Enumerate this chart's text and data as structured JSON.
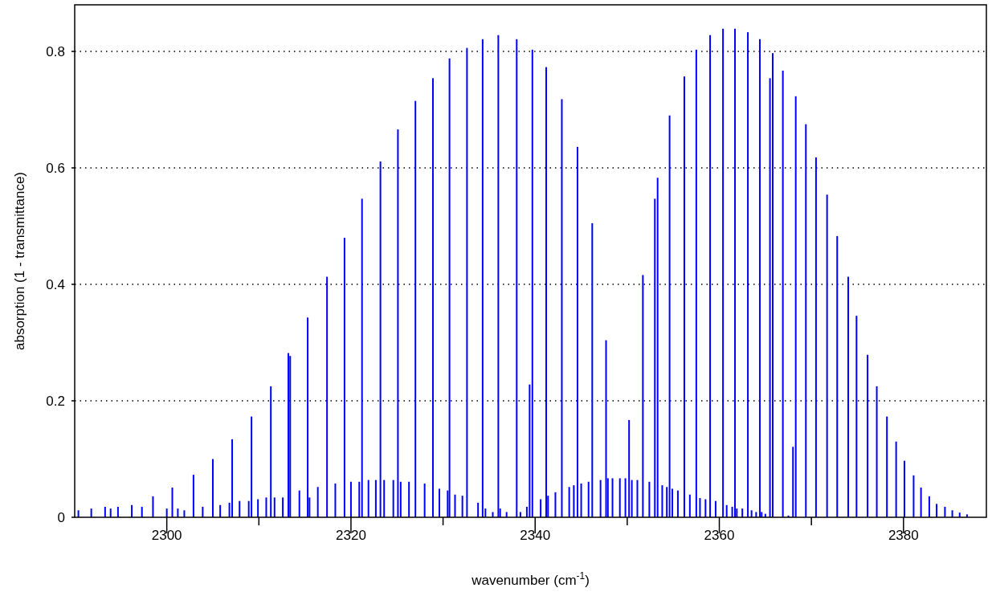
{
  "chart_data": {
    "type": "bar",
    "xlabel": "wavenumber (cm$^{-1}$)",
    "ylabel": "absorption (1 - transmittance)",
    "xlim": [
      2290,
      2389
    ],
    "ylim": [
      0,
      0.88
    ],
    "xticks": [
      2300,
      {
        "value": 2310,
        "label": null
      },
      2320,
      {
        "value": 2330,
        "label": null
      },
      2340,
      {
        "value": 2350,
        "label": null
      },
      2360,
      {
        "value": 2370,
        "label": null
      },
      2380
    ],
    "yticks": [
      0,
      0.2,
      0.4,
      0.6,
      0.8
    ],
    "grid": "y",
    "series": [
      {
        "color": "#0000ff",
        "x": [
          2290.4,
          2291.8,
          2293.3,
          2293.9,
          2294.7,
          2296.2,
          2297.3,
          2298.5,
          2300.0,
          2300.6,
          2301.2,
          2301.9,
          2302.9,
          2303.9,
          2305.0,
          2305.8,
          2306.8,
          2307.1,
          2307.9,
          2308.9,
          2309.2,
          2309.9,
          2310.8,
          2311.3,
          2311.7,
          2312.6,
          2313.2,
          2313.4,
          2314.4,
          2315.3,
          2315.5,
          2316.4,
          2317.4,
          2318.3,
          2319.3,
          2320.0,
          2320.9,
          2321.2,
          2321.9,
          2322.7,
          2323.2,
          2323.6,
          2324.6,
          2325.1,
          2325.4,
          2326.3,
          2327.0,
          2328.0,
          2328.9,
          2329.6,
          2330.5,
          2330.7,
          2331.3,
          2332.1,
          2332.6,
          2333.8,
          2334.3,
          2334.6,
          2335.4,
          2336.0,
          2336.2,
          2336.9,
          2338.0,
          2338.4,
          2339.1,
          2339.4,
          2339.7,
          2340.6,
          2341.2,
          2341.4,
          2342.2,
          2342.9,
          2343.7,
          2344.2,
          2344.6,
          2345.0,
          2345.8,
          2346.2,
          2347.1,
          2347.7,
          2347.9,
          2348.4,
          2349.2,
          2349.8,
          2350.2,
          2350.5,
          2351.1,
          2351.7,
          2352.4,
          2353.0,
          2353.3,
          2353.8,
          2354.3,
          2354.6,
          2354.9,
          2355.5,
          2356.2,
          2356.8,
          2357.5,
          2357.9,
          2358.5,
          2359.0,
          2359.6,
          2360.4,
          2360.8,
          2361.4,
          2361.7,
          2361.9,
          2362.5,
          2363.1,
          2363.5,
          2364.0,
          2364.4,
          2364.6,
          2365.0,
          2365.5,
          2365.8,
          2366.9,
          2367.5,
          2368.0,
          2368.3,
          2369.4,
          2370.5,
          2371.7,
          2372.8,
          2374.0,
          2374.9,
          2376.1,
          2377.1,
          2378.2,
          2379.2,
          2380.1,
          2381.1,
          2381.9,
          2382.8,
          2383.6,
          2384.5,
          2385.3,
          2386.1,
          2386.9
        ],
        "values": [
          0.012,
          0.015,
          0.018,
          0.015,
          0.018,
          0.021,
          0.018,
          0.036,
          0.015,
          0.051,
          0.015,
          0.012,
          0.073,
          0.018,
          0.1,
          0.021,
          0.025,
          0.134,
          0.028,
          0.028,
          0.173,
          0.031,
          0.034,
          0.225,
          0.034,
          0.034,
          0.282,
          0.277,
          0.046,
          0.343,
          0.034,
          0.052,
          0.413,
          0.058,
          0.48,
          0.061,
          0.061,
          0.547,
          0.064,
          0.064,
          0.611,
          0.064,
          0.064,
          0.666,
          0.061,
          0.061,
          0.715,
          0.058,
          0.754,
          0.049,
          0.046,
          0.788,
          0.039,
          0.037,
          0.806,
          0.025,
          0.821,
          0.015,
          0.009,
          0.828,
          0.015,
          0.009,
          0.821,
          0.009,
          0.018,
          0.228,
          0.803,
          0.031,
          0.773,
          0.037,
          0.043,
          0.718,
          0.052,
          0.055,
          0.636,
          0.058,
          0.061,
          0.505,
          0.064,
          0.304,
          0.067,
          0.067,
          0.067,
          0.067,
          0.167,
          0.064,
          0.064,
          0.416,
          0.061,
          0.547,
          0.583,
          0.055,
          0.052,
          0.69,
          0.049,
          0.046,
          0.757,
          0.039,
          0.803,
          0.033,
          0.031,
          0.828,
          0.028,
          0.839,
          0.021,
          0.018,
          0.839,
          0.015,
          0.015,
          0.833,
          0.012,
          0.009,
          0.821,
          0.009,
          0.006,
          0.754,
          0.797,
          0.767,
          0.003,
          0.121,
          0.723,
          0.675,
          0.618,
          0.554,
          0.483,
          0.413,
          0.346,
          0.279,
          0.225,
          0.173,
          0.13,
          0.097,
          0.072,
          0.051,
          0.036,
          0.023,
          0.018,
          0.012,
          0.008,
          0.005
        ]
      }
    ]
  }
}
